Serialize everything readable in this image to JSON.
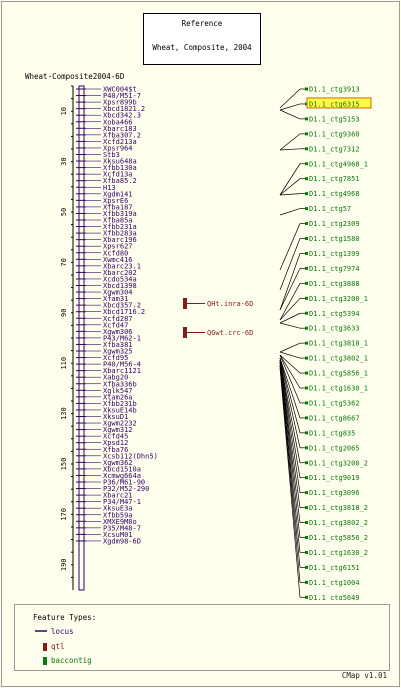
{
  "reference": {
    "title": "Reference",
    "map_set": "Wheat, Composite, 2004"
  },
  "map": {
    "name": "Wheat-Composite2004-6D",
    "ruler_ticks": [
      10,
      30,
      50,
      70,
      90,
      110,
      130,
      150,
      170,
      190
    ],
    "markers": [
      "XWC004$t",
      "P40/M51-7",
      "Xpsr899b",
      "Xbcd1821.2",
      "Xbcd342.3",
      "Xoba466",
      "Xbarc183",
      "Xfba307.2",
      "Xcfd213a",
      "Xpsr964",
      "Stb3",
      "Xksu648a",
      "Xfbb130a",
      "Xcfd13a",
      "Xfba85.2",
      "H13",
      "Xgdm141",
      "XpsrE6",
      "Xfba187",
      "Xfbb319a",
      "Xfba85a",
      "Xfbb231a",
      "Xfbb283a",
      "Xbarc196",
      "Xpsr627",
      "Xcfd80",
      "Xwmc416",
      "Xbarc23.1",
      "Xbarc202",
      "Xcdo534a",
      "Xbcd1398",
      "Xgwm304",
      "Xfam31",
      "Xbcd357.2",
      "Xbcd1716.2",
      "Xcfd287",
      "Xcfd47",
      "Xgwm306",
      "P43/M62-1",
      "Xfba381",
      "Xgwm325",
      "Xcfd95",
      "P40/M56-4",
      "Xbarc1121",
      "Xabg20",
      "Xfba336b",
      "Xglk547",
      "Xtam26a",
      "Xfbb231b",
      "XksuE14b",
      "XksuD1",
      "Xgwm2232",
      "Xgwm312",
      "Xcfd45",
      "Xpsd12",
      "Xfba76",
      "Xcsb112(Dhn5)",
      "Xgwm362",
      "Xbcd1510a",
      "Xcmwg664a",
      "P36/M61-90",
      "P32/M52-290",
      "Xbarc21",
      "P34/M47-1",
      "XksuE3a",
      "Xfbb59a",
      "XMXE9M8o",
      "P35/M48-7",
      "XcsuM01",
      "Xgdm98-6D"
    ],
    "qtls": [
      {
        "label": "QHt.inra-6D"
      },
      {
        "label": "QGwt.crc-6D"
      }
    ]
  },
  "contigs": [
    {
      "label": "D1.1_ctg3913",
      "highlight": false
    },
    {
      "label": "D1.1_ctg6315",
      "highlight": true
    },
    {
      "label": "D1.1_ctg5153",
      "highlight": false
    },
    {
      "label": "D1.1_ctg9360",
      "highlight": false
    },
    {
      "label": "D1.1_ctg7312",
      "highlight": false
    },
    {
      "label": "D1.1_ctg4968_1",
      "highlight": false
    },
    {
      "label": "D1.1_ctg7851",
      "highlight": false
    },
    {
      "label": "D1.1_ctg4968",
      "highlight": false
    },
    {
      "label": "D1.1_ctg57",
      "highlight": false
    },
    {
      "label": "D1.1_ctg2309",
      "highlight": false
    },
    {
      "label": "D1.1_ctg1580",
      "highlight": false
    },
    {
      "label": "D1.1_ctg1399",
      "highlight": false
    },
    {
      "label": "D1.1_ctg7974",
      "highlight": false
    },
    {
      "label": "D1.1_ctg3888",
      "highlight": false
    },
    {
      "label": "D1.1_ctg3200_1",
      "highlight": false
    },
    {
      "label": "D1.1_ctg5394",
      "highlight": false
    },
    {
      "label": "D1.1_ctg3633",
      "highlight": false
    },
    {
      "label": "D1.1_ctg3818_1",
      "highlight": false
    },
    {
      "label": "D1.1_ctg3802_1",
      "highlight": false
    },
    {
      "label": "D1.1_ctg5856_1",
      "highlight": false
    },
    {
      "label": "D1.1_ctg1630_1",
      "highlight": false
    },
    {
      "label": "D1.1_ctg5362",
      "highlight": false
    },
    {
      "label": "D1.1_ctg8667",
      "highlight": false
    },
    {
      "label": "D1.1_ctg835",
      "highlight": false
    },
    {
      "label": "D1.1_ctg2065",
      "highlight": false
    },
    {
      "label": "D1.1_ctg3200_2",
      "highlight": false
    },
    {
      "label": "D1.1_ctg9019",
      "highlight": false
    },
    {
      "label": "D1.1_ctg3096",
      "highlight": false
    },
    {
      "label": "D1.1_ctg3818_2",
      "highlight": false
    },
    {
      "label": "D1.1_ctg3802_2",
      "highlight": false
    },
    {
      "label": "D1.1_ctg5856_2",
      "highlight": false
    },
    {
      "label": "D1.1_ctg1630_2",
      "highlight": false
    },
    {
      "label": "D1.1_ctg6151",
      "highlight": false
    },
    {
      "label": "D1.1_ctg1004",
      "highlight": false
    },
    {
      "label": "D1.1_ctg5649",
      "highlight": false
    }
  ],
  "legend": {
    "title": "Feature Types:",
    "items": [
      {
        "label": "locus",
        "color": "#330066"
      },
      {
        "label": "qtl",
        "color": "#8b1a1a"
      },
      {
        "label": "baccontig",
        "color": "#0b7a0b"
      }
    ]
  },
  "colors": {
    "marker": "#330066",
    "contig": "#0b7a0b",
    "qtl": "#8b1a1a",
    "highlight_bg": "#ffff44"
  },
  "version": "CMap v1.01"
}
